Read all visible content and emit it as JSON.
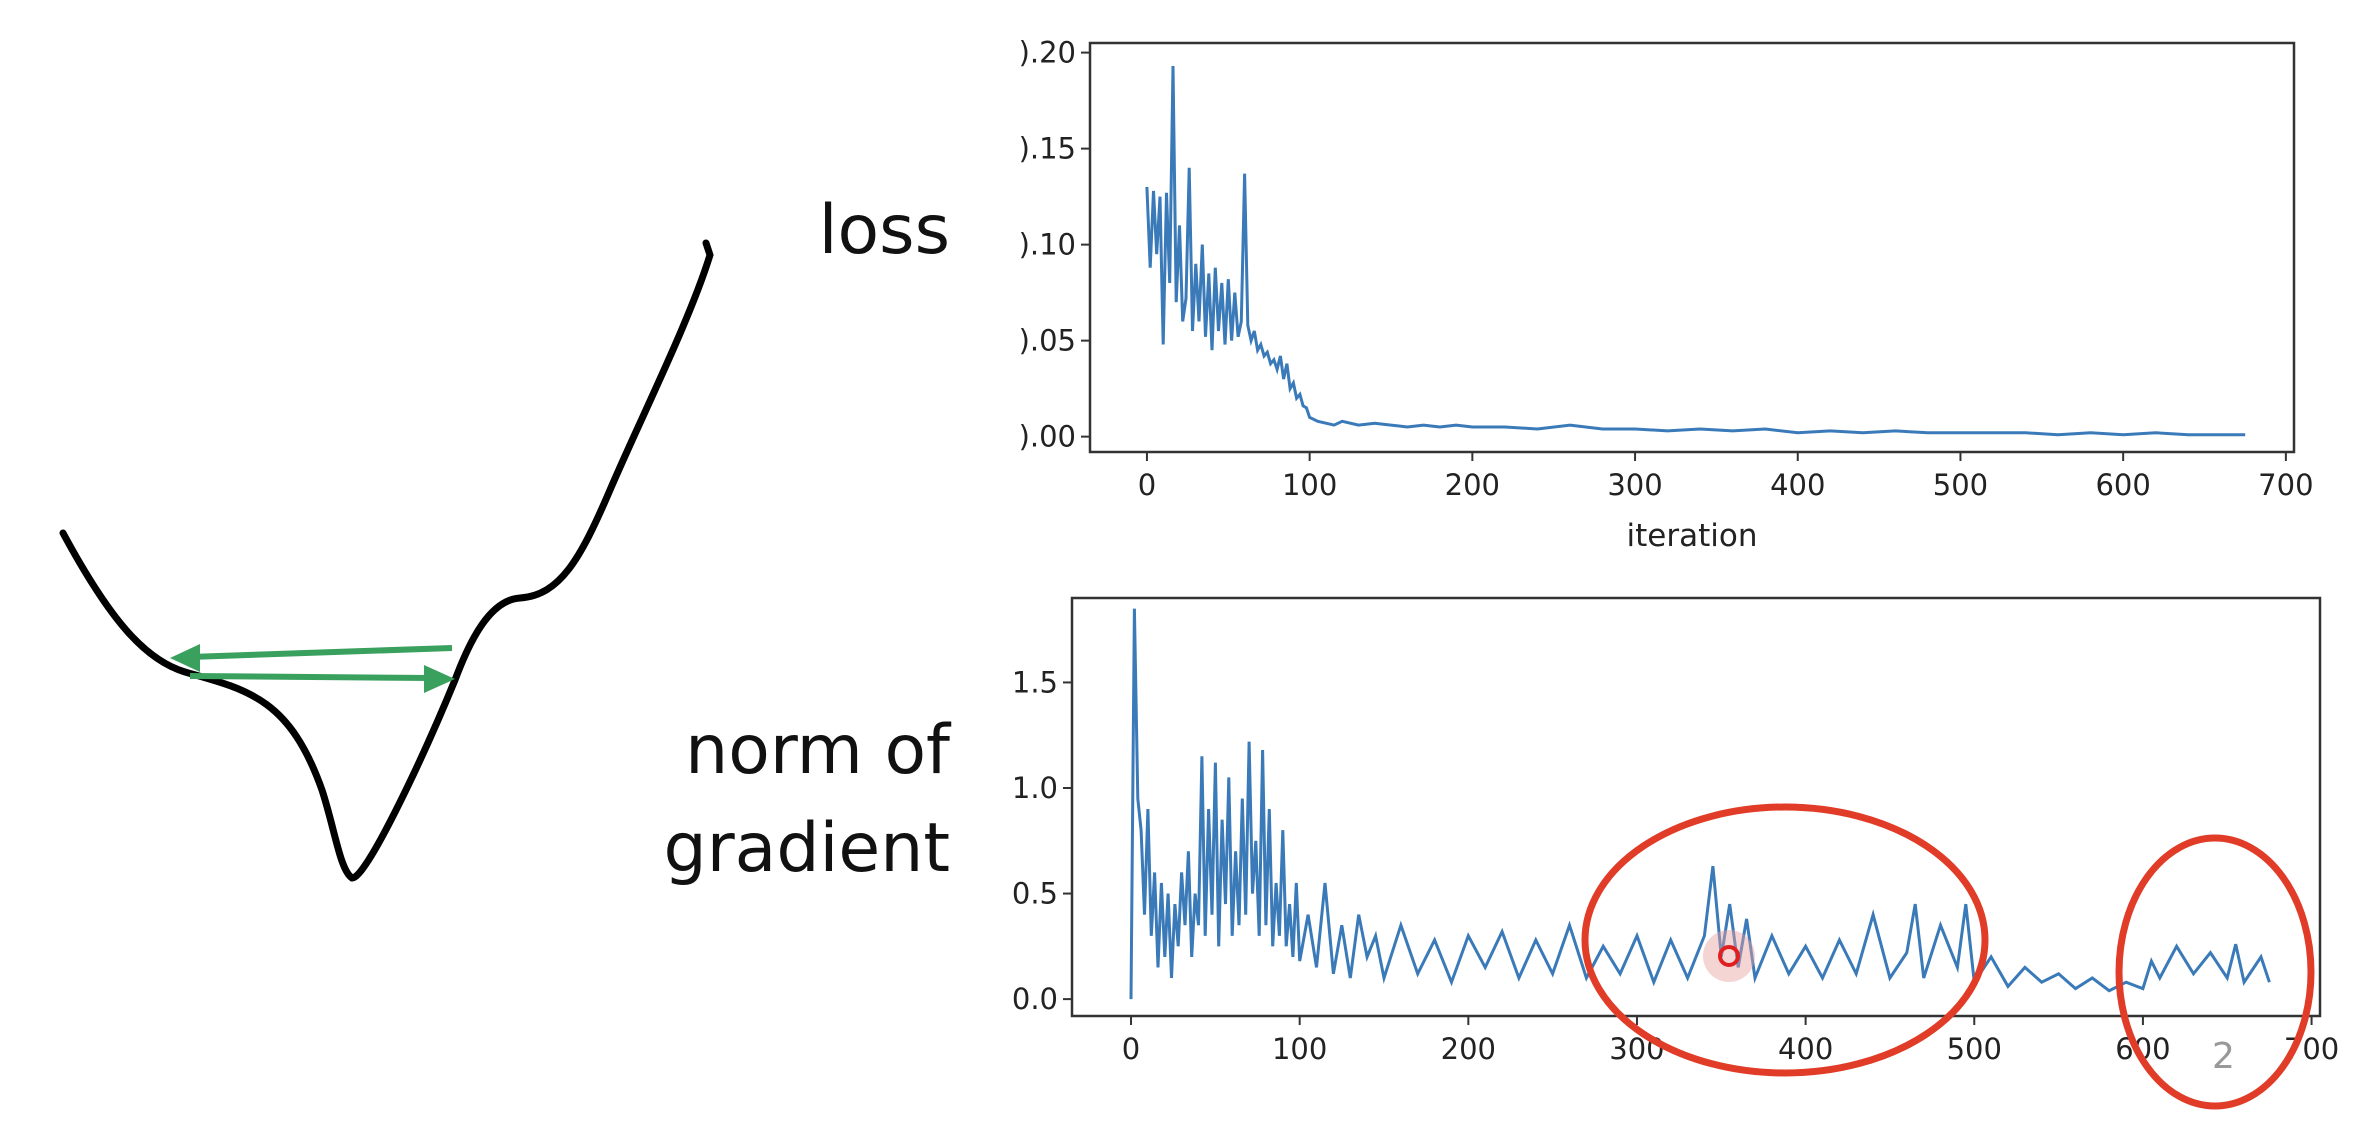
{
  "labels": {
    "loss": "loss",
    "norm_of_gradient_line1": "norm of",
    "norm_of_gradient_line2": "gradient"
  },
  "page_number": "2",
  "colors": {
    "series": "#3a7ab8",
    "annotation": "#e03c28",
    "arrow": "#3aa05e",
    "curve": "#000000"
  },
  "diagram": {
    "description_icon": "loss-landscape-curve-icon",
    "arrows": [
      "left-arrow",
      "right-arrow"
    ]
  },
  "chart_data": [
    {
      "type": "line",
      "title": "",
      "xlabel": "iteration",
      "ylabel": "",
      "xlim": [
        -35,
        705
      ],
      "ylim": [
        -0.008,
        0.205
      ],
      "xticks": [
        0,
        100,
        200,
        300,
        400,
        500,
        600,
        700
      ],
      "yticks": [
        0.0,
        0.05,
        0.1,
        0.15,
        0.2
      ],
      "ytick_labels": [
        ").00",
        ").05",
        ").10",
        ").15",
        ").20"
      ],
      "grid": false,
      "series": [
        {
          "x": [
            0,
            2,
            4,
            6,
            8,
            10,
            12,
            14,
            16,
            18,
            20,
            22,
            24,
            26,
            28,
            30,
            32,
            34,
            36,
            38,
            40,
            42,
            44,
            46,
            48,
            50,
            52,
            54,
            56,
            58,
            60,
            62,
            64,
            66,
            68,
            70,
            72,
            74,
            76,
            78,
            80,
            82,
            84,
            86,
            88,
            90,
            92,
            94,
            96,
            98,
            100,
            105,
            110,
            115,
            120,
            130,
            140,
            150,
            160,
            170,
            180,
            190,
            200,
            220,
            240,
            260,
            280,
            300,
            320,
            340,
            360,
            380,
            400,
            420,
            440,
            460,
            480,
            500,
            520,
            540,
            560,
            580,
            600,
            620,
            640,
            660,
            675
          ],
          "y": [
            0.13,
            0.088,
            0.128,
            0.095,
            0.125,
            0.048,
            0.127,
            0.08,
            0.193,
            0.07,
            0.11,
            0.06,
            0.072,
            0.14,
            0.055,
            0.09,
            0.06,
            0.1,
            0.052,
            0.085,
            0.045,
            0.088,
            0.055,
            0.08,
            0.048,
            0.082,
            0.05,
            0.075,
            0.052,
            0.06,
            0.137,
            0.058,
            0.05,
            0.055,
            0.045,
            0.048,
            0.042,
            0.044,
            0.038,
            0.04,
            0.035,
            0.042,
            0.03,
            0.038,
            0.025,
            0.028,
            0.02,
            0.022,
            0.016,
            0.015,
            0.01,
            0.008,
            0.007,
            0.006,
            0.008,
            0.006,
            0.007,
            0.006,
            0.005,
            0.006,
            0.005,
            0.006,
            0.005,
            0.005,
            0.004,
            0.006,
            0.004,
            0.004,
            0.003,
            0.004,
            0.003,
            0.004,
            0.002,
            0.003,
            0.002,
            0.003,
            0.002,
            0.002,
            0.002,
            0.002,
            0.001,
            0.002,
            0.001,
            0.002,
            0.001,
            0.001,
            0.001
          ]
        }
      ]
    },
    {
      "type": "line",
      "title": "",
      "xlabel": "",
      "ylabel": "",
      "xlim": [
        -35,
        705
      ],
      "ylim": [
        -0.08,
        1.9
      ],
      "xticks": [
        0,
        100,
        200,
        300,
        400,
        500,
        600,
        700
      ],
      "yticks": [
        0.0,
        0.5,
        1.0,
        1.5
      ],
      "ytick_labels": [
        "0.0",
        "0.5",
        "1.0",
        "1.5"
      ],
      "grid": false,
      "series": [
        {
          "x": [
            0,
            2,
            4,
            6,
            8,
            10,
            12,
            14,
            16,
            18,
            20,
            22,
            24,
            26,
            28,
            30,
            32,
            34,
            36,
            38,
            40,
            42,
            44,
            46,
            48,
            50,
            52,
            54,
            56,
            58,
            60,
            62,
            64,
            66,
            68,
            70,
            72,
            74,
            76,
            78,
            80,
            82,
            84,
            86,
            88,
            90,
            92,
            94,
            96,
            98,
            100,
            105,
            110,
            115,
            120,
            125,
            130,
            135,
            140,
            145,
            150,
            160,
            170,
            180,
            190,
            200,
            210,
            220,
            230,
            240,
            250,
            260,
            270,
            280,
            290,
            300,
            310,
            320,
            330,
            340,
            345,
            350,
            355,
            360,
            365,
            370,
            380,
            390,
            400,
            410,
            420,
            430,
            440,
            450,
            460,
            465,
            470,
            480,
            490,
            495,
            500,
            510,
            520,
            530,
            540,
            550,
            560,
            570,
            580,
            590,
            600,
            605,
            610,
            620,
            630,
            640,
            650,
            655,
            660,
            670,
            675
          ],
          "y": [
            0.0,
            1.85,
            0.95,
            0.8,
            0.4,
            0.9,
            0.3,
            0.6,
            0.15,
            0.55,
            0.2,
            0.5,
            0.1,
            0.45,
            0.25,
            0.6,
            0.35,
            0.7,
            0.2,
            0.5,
            0.35,
            1.15,
            0.3,
            0.9,
            0.4,
            1.12,
            0.25,
            0.85,
            0.45,
            1.05,
            0.3,
            0.7,
            0.35,
            0.95,
            0.4,
            1.22,
            0.5,
            0.75,
            0.3,
            1.18,
            0.35,
            0.9,
            0.25,
            0.55,
            0.3,
            0.8,
            0.25,
            0.45,
            0.2,
            0.55,
            0.18,
            0.4,
            0.15,
            0.55,
            0.12,
            0.35,
            0.1,
            0.4,
            0.2,
            0.3,
            0.1,
            0.35,
            0.12,
            0.28,
            0.08,
            0.3,
            0.15,
            0.32,
            0.1,
            0.28,
            0.12,
            0.35,
            0.1,
            0.25,
            0.12,
            0.3,
            0.08,
            0.28,
            0.1,
            0.3,
            0.63,
            0.2,
            0.45,
            0.15,
            0.38,
            0.1,
            0.3,
            0.12,
            0.25,
            0.1,
            0.28,
            0.12,
            0.4,
            0.1,
            0.22,
            0.45,
            0.1,
            0.35,
            0.15,
            0.45,
            0.08,
            0.2,
            0.06,
            0.15,
            0.08,
            0.12,
            0.05,
            0.1,
            0.04,
            0.08,
            0.05,
            0.18,
            0.1,
            0.25,
            0.12,
            0.22,
            0.1,
            0.26,
            0.08,
            0.2,
            0.08
          ]
        }
      ]
    }
  ],
  "annotations": {
    "circle_1": "red-circle-iteration-300-500",
    "circle_2": "red-circle-iteration-600-700",
    "cursor": "cursor-highlight"
  }
}
